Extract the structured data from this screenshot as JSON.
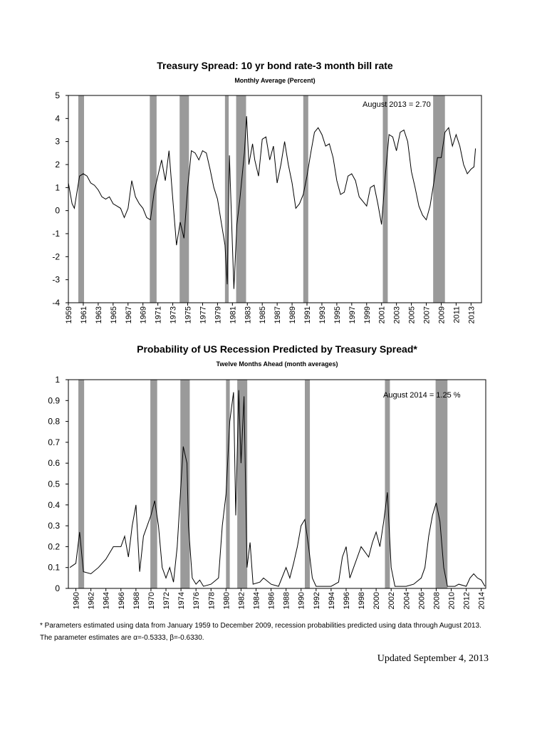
{
  "chart_data": [
    {
      "type": "line",
      "title": "Treasury Spread: 10 yr bond rate-3 month bill rate",
      "subtitle": "Monthly Average (Percent)",
      "annotation": "August 2013 = 2.70",
      "xlim": [
        1959,
        2014.4
      ],
      "ylim": [
        -4,
        5
      ],
      "yticks": [
        -4,
        -3,
        -2,
        -1,
        0,
        1,
        2,
        3,
        4,
        5
      ],
      "xticks": [
        1959,
        1961,
        1963,
        1965,
        1967,
        1969,
        1971,
        1973,
        1975,
        1977,
        1979,
        1981,
        1983,
        1985,
        1987,
        1989,
        1991,
        1993,
        1995,
        1997,
        1999,
        2001,
        2003,
        2005,
        2007,
        2009,
        2011,
        2013
      ],
      "recession_color": "#9a9a9a",
      "recessions": [
        [
          1960.33,
          1961.1
        ],
        [
          1969.92,
          1970.83
        ],
        [
          1973.92,
          1975.17
        ],
        [
          1980.0,
          1980.5
        ],
        [
          1981.5,
          1982.83
        ],
        [
          1990.5,
          1991.17
        ],
        [
          2001.17,
          2001.83
        ],
        [
          2007.92,
          2009.5
        ]
      ],
      "series": [
        {
          "color": "#000000",
          "x": [
            1959,
            1959.5,
            1959.8,
            1960.5,
            1961,
            1961.5,
            1962,
            1962.5,
            1963,
            1963.5,
            1964,
            1964.5,
            1965,
            1965.5,
            1966,
            1966.5,
            1967,
            1967.5,
            1968,
            1968.5,
            1969,
            1969.5,
            1970,
            1970.5,
            1971,
            1971.5,
            1972,
            1972.5,
            1973,
            1973.5,
            1974,
            1974.5,
            1975,
            1975.5,
            1976,
            1976.5,
            1977,
            1977.5,
            1978,
            1978.5,
            1979,
            1979.5,
            1980,
            1980.3,
            1980.6,
            1981,
            1981.2,
            1981.6,
            1982,
            1982.6,
            1982.9,
            1983.2,
            1983.7,
            1984,
            1984.5,
            1985,
            1985.5,
            1986,
            1986.5,
            1987,
            1987.5,
            1988,
            1988.5,
            1989,
            1989.5,
            1990,
            1990.5,
            1991,
            1991.5,
            1992,
            1992.5,
            1993,
            1993.5,
            1994,
            1994.5,
            1995,
            1995.5,
            1996,
            1996.5,
            1997,
            1997.5,
            1998,
            1998.5,
            1999,
            1999.5,
            2000,
            2000.5,
            2001,
            2001.5,
            2002,
            2002.5,
            2003,
            2003.5,
            2004,
            2004.5,
            2005,
            2005.5,
            2006,
            2006.5,
            2007,
            2007.5,
            2008,
            2008.5,
            2009,
            2009.5,
            2010,
            2010.5,
            2011,
            2011.5,
            2012,
            2012.5,
            2013,
            2013.4,
            2013.6
          ],
          "values": [
            1.2,
            0.3,
            0.1,
            1.5,
            1.6,
            1.5,
            1.2,
            1.1,
            0.9,
            0.6,
            0.5,
            0.6,
            0.3,
            0.2,
            0.1,
            -0.3,
            0.1,
            1.3,
            0.6,
            0.3,
            0.1,
            -0.3,
            -0.4,
            0.8,
            1.5,
            2.2,
            1.3,
            2.6,
            0.5,
            -1.5,
            -0.5,
            -1.2,
            1.0,
            2.6,
            2.5,
            2.2,
            2.6,
            2.5,
            1.8,
            1.0,
            0.5,
            -0.5,
            -1.5,
            -3.2,
            2.4,
            -1.5,
            -3.4,
            -0.6,
            0.5,
            2.5,
            4.1,
            2.0,
            2.9,
            2.2,
            1.5,
            3.1,
            3.2,
            2.2,
            2.8,
            1.2,
            2.0,
            3.0,
            2.0,
            1.2,
            0.1,
            0.3,
            0.7,
            1.5,
            2.5,
            3.4,
            3.6,
            3.3,
            2.8,
            2.9,
            2.3,
            1.3,
            0.7,
            0.8,
            1.5,
            1.6,
            1.3,
            0.6,
            0.4,
            0.2,
            1.0,
            1.1,
            0.3,
            -0.6,
            1.5,
            3.3,
            3.2,
            2.6,
            3.4,
            3.5,
            3.0,
            1.7,
            1.0,
            0.2,
            -0.2,
            -0.4,
            0.2,
            1.2,
            2.3,
            2.3,
            3.4,
            3.6,
            2.8,
            3.3,
            2.8,
            2.0,
            1.6,
            1.8,
            1.9,
            2.7
          ]
        }
      ]
    },
    {
      "type": "line",
      "title": "Probability of US Recession Predicted by Treasury Spread*",
      "subtitle": "Twelve Months Ahead (month averages)",
      "annotation": "August 2014 = 1.25 %",
      "xlim": [
        1959,
        2014.6
      ],
      "ylim": [
        0,
        1
      ],
      "yticks": [
        0,
        0.1,
        0.2,
        0.3,
        0.4,
        0.5,
        0.6,
        0.7,
        0.8,
        0.9,
        1
      ],
      "xticks": [
        1960,
        1962,
        1964,
        1966,
        1968,
        1970,
        1972,
        1974,
        1976,
        1978,
        1980,
        1982,
        1984,
        1986,
        1988,
        1990,
        1992,
        1994,
        1996,
        1998,
        2000,
        2002,
        2004,
        2006,
        2008,
        2010,
        2012,
        2014
      ],
      "recession_color": "#9a9a9a",
      "recessions": [
        [
          1960.33,
          1961.1
        ],
        [
          1969.92,
          1970.83
        ],
        [
          1973.92,
          1975.17
        ],
        [
          1980.0,
          1980.5
        ],
        [
          1981.5,
          1982.83
        ],
        [
          1990.5,
          1991.17
        ],
        [
          2001.17,
          2001.83
        ],
        [
          2007.92,
          2009.5
        ]
      ],
      "series": [
        {
          "color": "#000000",
          "x": [
            1959.2,
            1960,
            1960.5,
            1961,
            1962,
            1963,
            1964,
            1965,
            1966,
            1966.5,
            1967,
            1967.5,
            1968,
            1968.5,
            1969,
            1969.5,
            1970,
            1970.5,
            1971,
            1971.5,
            1972,
            1972.5,
            1973,
            1973.5,
            1974,
            1974.3,
            1974.8,
            1975,
            1975.5,
            1976,
            1976.5,
            1977,
            1978,
            1979,
            1979.5,
            1980,
            1980.5,
            1981,
            1981.3,
            1981.7,
            1982,
            1982.4,
            1982.8,
            1983.2,
            1983.6,
            1984.5,
            1985,
            1986,
            1987,
            1988,
            1988.5,
            1989,
            1989.5,
            1990,
            1990.5,
            1991,
            1991.5,
            1992,
            1994,
            1995,
            1995.5,
            1996,
            1996.5,
            1997,
            1997.5,
            1998,
            1999,
            1999.5,
            2000,
            2000.5,
            2001,
            2001.5,
            2002,
            2002.5,
            2004,
            2005,
            2006,
            2006.5,
            2007,
            2007.5,
            2008,
            2008.5,
            2009,
            2009.5,
            2010.5,
            2011,
            2012,
            2012.5,
            2013,
            2013.5,
            2014,
            2014.5
          ],
          "values": [
            0.1,
            0.12,
            0.27,
            0.08,
            0.07,
            0.1,
            0.14,
            0.2,
            0.2,
            0.25,
            0.15,
            0.3,
            0.4,
            0.08,
            0.25,
            0.3,
            0.35,
            0.42,
            0.3,
            0.1,
            0.05,
            0.1,
            0.03,
            0.2,
            0.5,
            0.68,
            0.6,
            0.3,
            0.05,
            0.02,
            0.04,
            0.01,
            0.02,
            0.05,
            0.3,
            0.45,
            0.8,
            0.94,
            0.35,
            0.95,
            0.6,
            0.92,
            0.1,
            0.22,
            0.02,
            0.03,
            0.05,
            0.02,
            0.01,
            0.1,
            0.05,
            0.12,
            0.2,
            0.3,
            0.33,
            0.2,
            0.05,
            0.01,
            0.01,
            0.03,
            0.15,
            0.2,
            0.05,
            0.1,
            0.15,
            0.2,
            0.15,
            0.22,
            0.27,
            0.2,
            0.32,
            0.46,
            0.1,
            0.01,
            0.01,
            0.02,
            0.05,
            0.1,
            0.25,
            0.35,
            0.41,
            0.32,
            0.1,
            0.01,
            0.01,
            0.02,
            0.01,
            0.05,
            0.07,
            0.05,
            0.04,
            0.01
          ]
        }
      ]
    }
  ],
  "footnote": [
    "* Parameters estimated using data from January 1959 to December 2009, recession probabilities predicted using data through August 2013.",
    "The parameter estimates are α=-0.5333, β=-0.6330."
  ],
  "updated": "Updated September 4, 2013"
}
